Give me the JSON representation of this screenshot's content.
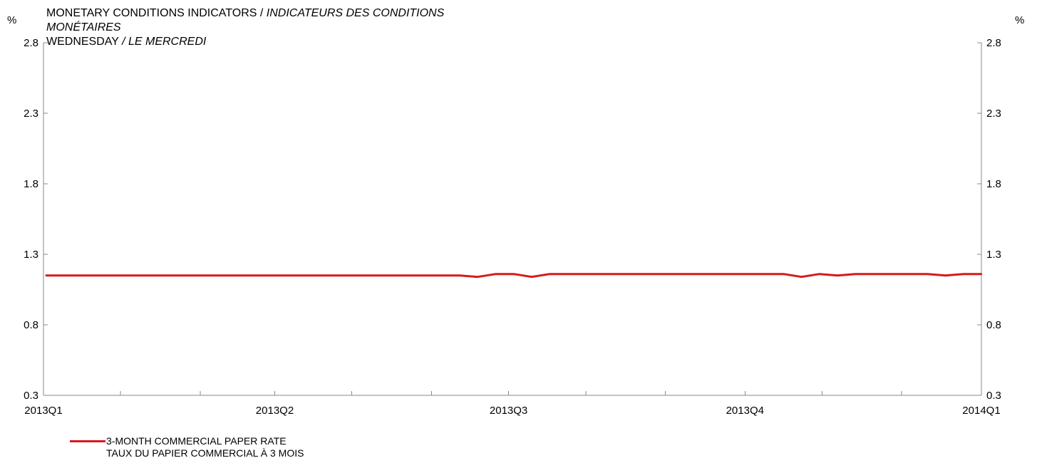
{
  "title": {
    "line1_en": "MONETARY CONDITIONS INDICATORS / ",
    "line1_fr": "INDICATEURS DES CONDITIONS",
    "line2_fr": "MONÉTAIRES",
    "line3_en": "WEDNESDAY ",
    "line3_fr": "/ LE MERCREDI"
  },
  "units": {
    "left": "%",
    "right": "%"
  },
  "legend": {
    "label_en": "3-MONTH COMMERCIAL PAPER RATE",
    "label_fr": "TAUX DU PAPIER COMMERCIAL À 3 MOIS",
    "color": "#d7191c"
  },
  "chart_data": {
    "type": "line",
    "title": "MONETARY CONDITIONS INDICATORS / INDICATEURS DES CONDITIONS MONÉTAIRES — WEDNESDAY / LE MERCREDI",
    "ylim": [
      0.3,
      2.8
    ],
    "y_ticks": [
      "0.3",
      "0.8",
      "1.3",
      "1.8",
      "2.3",
      "2.8"
    ],
    "x_tick_labels": [
      "2013Q1",
      "2013Q2",
      "2013Q3",
      "2013Q4",
      "2014Q1"
    ],
    "x_tick_dates": [
      "2013-01-01",
      "2013-04-01",
      "2013-07-01",
      "2013-10-01",
      "2014-01-01"
    ],
    "x_minor_tick_dates": [
      "2013-01-31",
      "2013-03-03",
      "2013-05-01",
      "2013-06-01",
      "2013-07-31",
      "2013-08-31",
      "2013-10-31",
      "2013-12-01"
    ],
    "x_range": [
      "2013-01-01",
      "2014-01-01"
    ],
    "grid": false,
    "legend_position": "bottom-left",
    "series": [
      {
        "name": "3-MONTH COMMERCIAL PAPER RATE / TAUX DU PAPIER COMMERCIAL À 3 MOIS",
        "color": "#d7191c",
        "x": [
          "2013-01-02",
          "2013-01-09",
          "2013-01-16",
          "2013-01-23",
          "2013-01-30",
          "2013-02-06",
          "2013-02-13",
          "2013-02-20",
          "2013-02-27",
          "2013-03-06",
          "2013-03-13",
          "2013-03-20",
          "2013-03-27",
          "2013-04-03",
          "2013-04-10",
          "2013-04-17",
          "2013-04-24",
          "2013-05-01",
          "2013-05-08",
          "2013-05-15",
          "2013-05-22",
          "2013-05-29",
          "2013-06-05",
          "2013-06-12",
          "2013-06-19",
          "2013-06-26",
          "2013-07-03",
          "2013-07-10",
          "2013-07-17",
          "2013-07-24",
          "2013-07-31",
          "2013-08-07",
          "2013-08-14",
          "2013-08-21",
          "2013-08-28",
          "2013-09-04",
          "2013-09-11",
          "2013-09-18",
          "2013-09-25",
          "2013-10-02",
          "2013-10-09",
          "2013-10-16",
          "2013-10-23",
          "2013-10-30",
          "2013-11-06",
          "2013-11-13",
          "2013-11-20",
          "2013-11-27",
          "2013-12-04",
          "2013-12-11",
          "2013-12-18",
          "2013-12-25",
          "2014-01-01"
        ],
        "values": [
          1.15,
          1.15,
          1.15,
          1.15,
          1.15,
          1.15,
          1.15,
          1.15,
          1.15,
          1.15,
          1.15,
          1.15,
          1.15,
          1.15,
          1.15,
          1.15,
          1.15,
          1.15,
          1.15,
          1.15,
          1.15,
          1.15,
          1.15,
          1.15,
          1.14,
          1.16,
          1.16,
          1.14,
          1.16,
          1.16,
          1.16,
          1.16,
          1.16,
          1.16,
          1.16,
          1.16,
          1.16,
          1.16,
          1.16,
          1.16,
          1.16,
          1.16,
          1.14,
          1.16,
          1.15,
          1.16,
          1.16,
          1.16,
          1.16,
          1.16,
          1.15,
          1.16,
          1.16
        ]
      }
    ]
  }
}
